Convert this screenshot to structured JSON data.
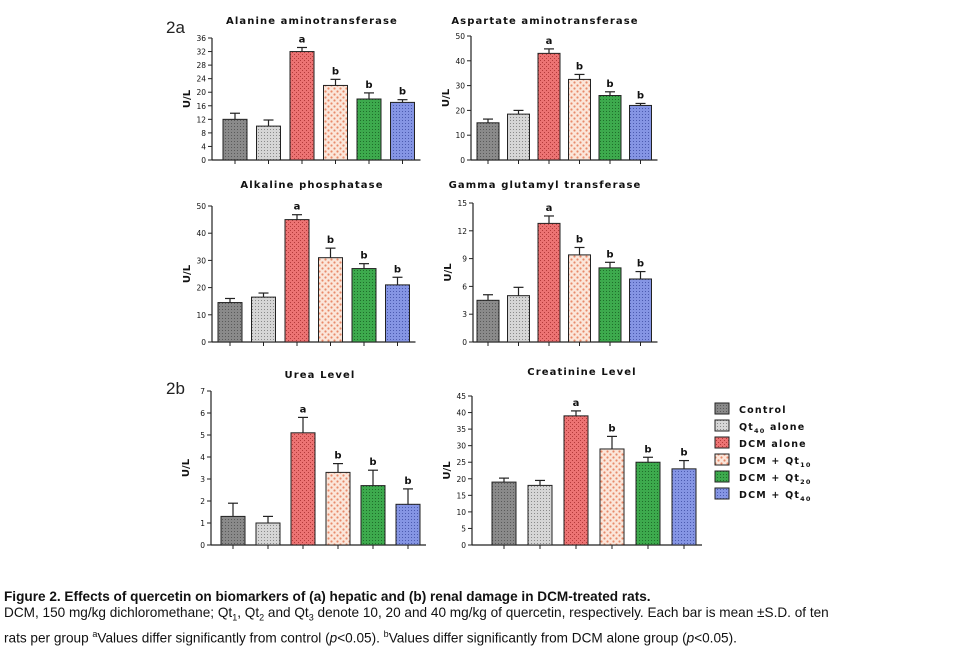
{
  "panel_labels": {
    "a": "2a",
    "b": "2b"
  },
  "legend": [
    {
      "label": "Control",
      "sub": "",
      "pattern": "control"
    },
    {
      "label": "Qt",
      "sub": "40",
      "suffix": " alone",
      "pattern": "qt40"
    },
    {
      "label": "DCM alone",
      "sub": "",
      "pattern": "dcm"
    },
    {
      "label": "DCM + Qt",
      "sub": "10",
      "pattern": "dcmqt10"
    },
    {
      "label": "DCM + Qt",
      "sub": "20",
      "pattern": "dcmqt20"
    },
    {
      "label": "DCM + Qt",
      "sub": "40",
      "pattern": "dcmqt40"
    }
  ],
  "colors": {
    "control": "#8a8a8a",
    "qt40": "#c8c8c8",
    "dcm": "#e86a6a",
    "dcmqt10": "#f7d9c8",
    "dcmqt20": "#39a84a",
    "dcmqt40": "#7f8fe0"
  },
  "chart_data": [
    {
      "type": "bar",
      "title": "Alanine aminotransferase",
      "ylabel": "U/L",
      "categories": [
        "Control",
        "Qt40 alone",
        "DCM alone",
        "DCM + Qt10",
        "DCM + Qt20",
        "DCM + Qt40"
      ],
      "values": [
        12,
        10,
        32,
        22,
        18,
        17
      ],
      "errors": [
        1.8,
        1.8,
        1.2,
        1.8,
        1.8,
        0.8
      ],
      "letters": [
        "",
        "",
        "a",
        "b",
        "b",
        "b"
      ],
      "ylim": [
        0,
        36
      ],
      "yticks": [
        0,
        4,
        8,
        12,
        16,
        20,
        24,
        28,
        32,
        36
      ],
      "yticklabels": [
        "0",
        "4",
        "8",
        "12",
        "16",
        "20",
        "24",
        "28",
        "32",
        "36"
      ]
    },
    {
      "type": "bar",
      "title": "Aspartate aminotransferase",
      "ylabel": "U/L",
      "categories": [
        "Control",
        "Qt40 alone",
        "DCM alone",
        "DCM + Qt10",
        "DCM + Qt20",
        "DCM + Qt40"
      ],
      "values": [
        15,
        18.5,
        43,
        32.5,
        26,
        22
      ],
      "errors": [
        1.5,
        1.5,
        1.8,
        2.0,
        1.5,
        0.8
      ],
      "letters": [
        "",
        "",
        "a",
        "b",
        "b",
        "b"
      ],
      "ylim": [
        0,
        50
      ],
      "yticks": [
        0,
        10,
        20,
        30,
        40,
        50
      ],
      "yticklabels": [
        "0",
        "10",
        "20",
        "30",
        "40",
        "50"
      ]
    },
    {
      "type": "bar",
      "title": "Alkaline phosphatase",
      "ylabel": "U/L",
      "categories": [
        "Control",
        "Qt40 alone",
        "DCM alone",
        "DCM + Qt10",
        "DCM + Qt20",
        "DCM + Qt40"
      ],
      "values": [
        14.5,
        16.5,
        45,
        31,
        27,
        21
      ],
      "errors": [
        1.5,
        1.5,
        1.8,
        3.5,
        1.8,
        2.8
      ],
      "letters": [
        "",
        "",
        "a",
        "b",
        "b",
        "b"
      ],
      "ylim": [
        0,
        50
      ],
      "yticks": [
        0,
        10,
        20,
        30,
        40,
        50
      ],
      "yticklabels": [
        "0",
        "10",
        "20",
        "30",
        "40",
        "50"
      ]
    },
    {
      "type": "bar",
      "title": "Gamma glutamyl transferase",
      "ylabel": "U/L",
      "categories": [
        "Control",
        "Qt40 alone",
        "DCM alone",
        "DCM + Qt10",
        "DCM + Qt20",
        "DCM + Qt40"
      ],
      "values": [
        4.5,
        5.0,
        12.8,
        9.4,
        8.0,
        6.8
      ],
      "errors": [
        0.6,
        0.9,
        0.8,
        0.8,
        0.6,
        0.8
      ],
      "letters": [
        "",
        "",
        "a",
        "b",
        "b",
        "b"
      ],
      "ylim": [
        0,
        15
      ],
      "yticks": [
        0,
        3,
        6,
        9,
        12,
        15
      ],
      "yticklabels": [
        "0",
        "3",
        "6",
        "9",
        "12",
        "15"
      ]
    },
    {
      "type": "bar",
      "title": "Urea Level",
      "ylabel": "U/L",
      "categories": [
        "Control",
        "Qt40 alone",
        "DCM alone",
        "DCM + Qt10",
        "DCM + Qt20",
        "DCM + Qt40"
      ],
      "values": [
        1.3,
        1.0,
        5.1,
        3.3,
        2.7,
        1.85
      ],
      "errors": [
        0.6,
        0.3,
        0.7,
        0.4,
        0.7,
        0.7
      ],
      "letters": [
        "",
        "",
        "a",
        "b",
        "b",
        "b"
      ],
      "ylim": [
        0,
        7
      ],
      "yticks": [
        0,
        1,
        2,
        3,
        4,
        5,
        6,
        7
      ],
      "yticklabels": [
        "0",
        "1",
        "2",
        "3",
        "4",
        "5",
        "6",
        "7"
      ]
    },
    {
      "type": "bar",
      "title": "Creatinine Level",
      "ylabel": "U/L",
      "categories": [
        "Control",
        "Qt40 alone",
        "DCM alone",
        "DCM + Qt10",
        "DCM + Qt20",
        "DCM + Qt40"
      ],
      "values": [
        19,
        18,
        39,
        29,
        25,
        23
      ],
      "errors": [
        1.2,
        1.5,
        1.5,
        3.8,
        1.5,
        2.5
      ],
      "letters": [
        "",
        "",
        "a",
        "b",
        "b",
        "b"
      ],
      "ylim": [
        0,
        45
      ],
      "yticks": [
        0,
        5,
        10,
        15,
        20,
        25,
        30,
        35,
        40,
        45
      ],
      "yticklabels": [
        "0",
        "5",
        "10",
        "15",
        "20",
        "25",
        "30",
        "35",
        "40",
        "45"
      ]
    }
  ],
  "caption": {
    "title": "Figure 2. Effects of quercetin on biomarkers of (a) hepatic and (b) renal damage in DCM-treated rats.",
    "line1_a": "DCM, 150 mg/kg dichloromethane; Qt",
    "line1_sub1": "1",
    "line1_b": ", Qt",
    "line1_sub2": "2",
    "line1_c": " and Qt",
    "line1_sub3": "3",
    "line1_d": " denote 10, 20 and 40 mg/kg of quercetin, respectively. Each bar is mean ±S.D. of ten",
    "line2_a": "rats per group ",
    "line2_sup1": "a",
    "line2_b": "Values differ significantly from control (",
    "line2_p1": "p",
    "line2_c": "<0.05). ",
    "line2_sup2": "b",
    "line2_d": "Values differ significantly from DCM alone group (",
    "line2_p2": "p",
    "line2_e": "<0.05)."
  }
}
